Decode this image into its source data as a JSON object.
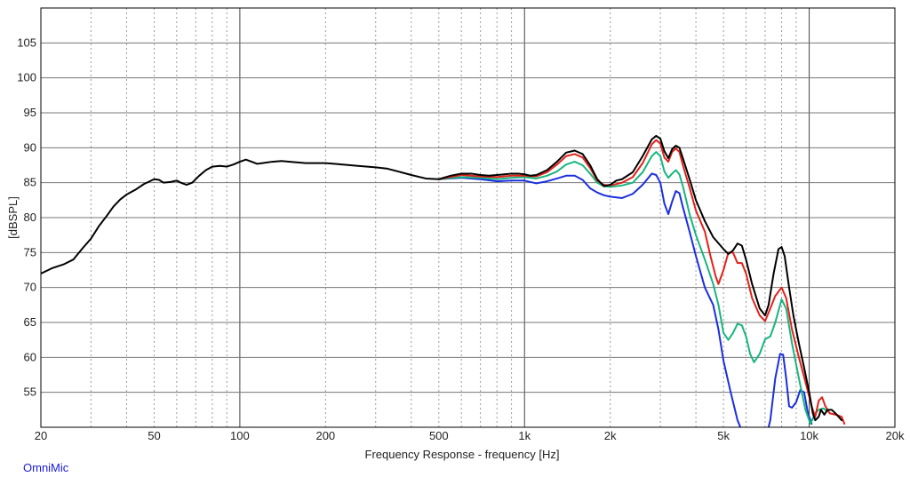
{
  "chart_data": {
    "type": "line",
    "title": "",
    "xlabel": "Frequency Response - frequency [Hz]",
    "ylabel": "[dBSPL]",
    "x_scale": "log",
    "xlim": [
      20,
      20000
    ],
    "ylim": [
      50,
      110
    ],
    "x_ticks": [
      {
        "value": 20,
        "label": "20"
      },
      {
        "value": 50,
        "label": "50"
      },
      {
        "value": 100,
        "label": "100"
      },
      {
        "value": 200,
        "label": "200"
      },
      {
        "value": 500,
        "label": "500"
      },
      {
        "value": 1000,
        "label": "1k"
      },
      {
        "value": 2000,
        "label": "2k"
      },
      {
        "value": 5000,
        "label": "5k"
      },
      {
        "value": 10000,
        "label": "10k"
      },
      {
        "value": 20000,
        "label": "20k"
      }
    ],
    "y_ticks": [
      55,
      60,
      65,
      70,
      75,
      80,
      85,
      90,
      95,
      100,
      105
    ],
    "grid": true,
    "legend": "none",
    "series": [
      {
        "color": "#000000",
        "points": [
          [
            20,
            72
          ],
          [
            22,
            72.8
          ],
          [
            24,
            73.3
          ],
          [
            26,
            74
          ],
          [
            28,
            75.6
          ],
          [
            30,
            77
          ],
          [
            32,
            78.8
          ],
          [
            34,
            80.2
          ],
          [
            36,
            81.6
          ],
          [
            38,
            82.6
          ],
          [
            40,
            83.3
          ],
          [
            43,
            84
          ],
          [
            46,
            84.8
          ],
          [
            50,
            85.5
          ],
          [
            52,
            85.4
          ],
          [
            54,
            85
          ],
          [
            57,
            85.1
          ],
          [
            60,
            85.3
          ],
          [
            62,
            85
          ],
          [
            65,
            84.7
          ],
          [
            68,
            85
          ],
          [
            72,
            86
          ],
          [
            76,
            86.8
          ],
          [
            80,
            87.3
          ],
          [
            85,
            87.4
          ],
          [
            90,
            87.3
          ],
          [
            95,
            87.6
          ],
          [
            100,
            88
          ],
          [
            105,
            88.3
          ],
          [
            110,
            88
          ],
          [
            115,
            87.7
          ],
          [
            120,
            87.8
          ],
          [
            130,
            88
          ],
          [
            140,
            88.1
          ],
          [
            150,
            88
          ],
          [
            160,
            87.9
          ],
          [
            170,
            87.8
          ],
          [
            180,
            87.8
          ],
          [
            200,
            87.8
          ],
          [
            230,
            87.6
          ],
          [
            260,
            87.4
          ],
          [
            300,
            87.2
          ],
          [
            330,
            87
          ],
          [
            360,
            86.6
          ],
          [
            400,
            86.1
          ],
          [
            450,
            85.6
          ],
          [
            500,
            85.5
          ],
          [
            550,
            86
          ],
          [
            600,
            86.3
          ],
          [
            650,
            86.3
          ],
          [
            700,
            86.1
          ],
          [
            750,
            86
          ],
          [
            800,
            86.1
          ],
          [
            850,
            86.2
          ],
          [
            900,
            86.3
          ],
          [
            950,
            86.3
          ],
          [
            1000,
            86.2
          ],
          [
            1050,
            86
          ],
          [
            1100,
            86.1
          ],
          [
            1200,
            86.8
          ],
          [
            1300,
            88
          ],
          [
            1400,
            89.3
          ],
          [
            1500,
            89.6
          ],
          [
            1600,
            89.1
          ],
          [
            1700,
            87.5
          ],
          [
            1800,
            85.5
          ],
          [
            1900,
            84.5
          ],
          [
            2000,
            84.7
          ],
          [
            2100,
            85.3
          ],
          [
            2200,
            85.5
          ],
          [
            2400,
            86.5
          ],
          [
            2600,
            88.8
          ],
          [
            2800,
            91.2
          ],
          [
            2900,
            91.7
          ],
          [
            3000,
            91.3
          ],
          [
            3100,
            89.5
          ],
          [
            3200,
            88.5
          ],
          [
            3300,
            89.8
          ],
          [
            3400,
            90.3
          ],
          [
            3500,
            90
          ],
          [
            3600,
            88.5
          ],
          [
            3800,
            85.5
          ],
          [
            4000,
            82.5
          ],
          [
            4300,
            79.5
          ],
          [
            4600,
            77.2
          ],
          [
            5000,
            75.5
          ],
          [
            5200,
            74.8
          ],
          [
            5400,
            75.3
          ],
          [
            5600,
            76.3
          ],
          [
            5800,
            76
          ],
          [
            6000,
            74
          ],
          [
            6300,
            70.5
          ],
          [
            6700,
            67
          ],
          [
            7000,
            66
          ],
          [
            7200,
            67.5
          ],
          [
            7500,
            72
          ],
          [
            7800,
            75.5
          ],
          [
            8000,
            75.8
          ],
          [
            8200,
            74.5
          ],
          [
            8500,
            70
          ],
          [
            8800,
            66
          ],
          [
            9200,
            62
          ],
          [
            9600,
            58.5
          ],
          [
            10000,
            55
          ],
          [
            10300,
            52
          ],
          [
            10500,
            51
          ],
          [
            10800,
            51.5
          ],
          [
            11000,
            52.5
          ],
          [
            11300,
            51.8
          ],
          [
            11600,
            52.5
          ],
          [
            12000,
            52.5
          ],
          [
            12500,
            51.8
          ],
          [
            13000,
            51
          ]
        ]
      },
      {
        "color": "#e0221a",
        "points": [
          [
            500,
            85.5
          ],
          [
            600,
            86.1
          ],
          [
            700,
            85.9
          ],
          [
            800,
            85.8
          ],
          [
            900,
            86
          ],
          [
            1000,
            86
          ],
          [
            1100,
            85.9
          ],
          [
            1200,
            86.5
          ],
          [
            1300,
            87.6
          ],
          [
            1400,
            88.8
          ],
          [
            1500,
            89.1
          ],
          [
            1600,
            88.6
          ],
          [
            1700,
            87.1
          ],
          [
            1800,
            85.3
          ],
          [
            1900,
            84.7
          ],
          [
            2000,
            84.6
          ],
          [
            2200,
            85
          ],
          [
            2400,
            85.8
          ],
          [
            2600,
            87.8
          ],
          [
            2800,
            90.5
          ],
          [
            2900,
            91.1
          ],
          [
            3000,
            90.6
          ],
          [
            3100,
            88.6
          ],
          [
            3200,
            88
          ],
          [
            3300,
            89.4
          ],
          [
            3400,
            89.9
          ],
          [
            3500,
            89.4
          ],
          [
            3600,
            87.5
          ],
          [
            3800,
            84.3
          ],
          [
            4000,
            81
          ],
          [
            4300,
            78
          ],
          [
            4500,
            74.5
          ],
          [
            4700,
            71.5
          ],
          [
            4800,
            70.5
          ],
          [
            5000,
            72.5
          ],
          [
            5200,
            75
          ],
          [
            5400,
            75
          ],
          [
            5600,
            73.5
          ],
          [
            5800,
            73.5
          ],
          [
            6000,
            72
          ],
          [
            6300,
            68.5
          ],
          [
            6700,
            66
          ],
          [
            7000,
            65.2
          ],
          [
            7300,
            67
          ],
          [
            7600,
            68.8
          ],
          [
            8000,
            70
          ],
          [
            8300,
            68.5
          ],
          [
            8700,
            64
          ],
          [
            9200,
            60
          ],
          [
            9700,
            56.5
          ],
          [
            10200,
            53
          ],
          [
            10500,
            51.5
          ],
          [
            10800,
            53.8
          ],
          [
            11100,
            54.3
          ],
          [
            11400,
            53
          ],
          [
            11800,
            52
          ],
          [
            12400,
            51.8
          ],
          [
            13000,
            51.5
          ],
          [
            13300,
            50.5
          ]
        ]
      },
      {
        "color": "#17b57f",
        "points": [
          [
            500,
            85.5
          ],
          [
            600,
            85.8
          ],
          [
            700,
            85.7
          ],
          [
            800,
            85.5
          ],
          [
            900,
            85.7
          ],
          [
            1000,
            85.8
          ],
          [
            1100,
            85.6
          ],
          [
            1200,
            86
          ],
          [
            1300,
            86.6
          ],
          [
            1400,
            87.6
          ],
          [
            1500,
            88
          ],
          [
            1600,
            87.5
          ],
          [
            1700,
            86.3
          ],
          [
            1800,
            85
          ],
          [
            1900,
            84.5
          ],
          [
            2000,
            84.4
          ],
          [
            2200,
            84.6
          ],
          [
            2400,
            85
          ],
          [
            2600,
            86.5
          ],
          [
            2800,
            88.8
          ],
          [
            2900,
            89.4
          ],
          [
            3000,
            88.8
          ],
          [
            3100,
            86.6
          ],
          [
            3200,
            85.7
          ],
          [
            3300,
            86.3
          ],
          [
            3400,
            86.8
          ],
          [
            3500,
            86.2
          ],
          [
            3600,
            84.5
          ],
          [
            3800,
            80.5
          ],
          [
            4000,
            77.5
          ],
          [
            4300,
            74
          ],
          [
            4600,
            70.5
          ],
          [
            4800,
            67.5
          ],
          [
            5000,
            63.5
          ],
          [
            5200,
            62.5
          ],
          [
            5400,
            63.5
          ],
          [
            5600,
            64.8
          ],
          [
            5800,
            64.6
          ],
          [
            6000,
            63
          ],
          [
            6200,
            60.5
          ],
          [
            6400,
            59.3
          ],
          [
            6700,
            60.5
          ],
          [
            7000,
            62.6
          ],
          [
            7300,
            63
          ],
          [
            7600,
            65
          ],
          [
            8000,
            68.3
          ],
          [
            8300,
            67
          ],
          [
            8700,
            62
          ],
          [
            9200,
            57
          ],
          [
            9700,
            52.5
          ],
          [
            10100,
            50.5
          ],
          [
            10500,
            52
          ],
          [
            10800,
            52.5
          ],
          [
            11200,
            52.7
          ],
          [
            11700,
            52.2
          ]
        ]
      },
      {
        "color": "#1a2ee0",
        "points": [
          [
            500,
            85.5
          ],
          [
            600,
            85.7
          ],
          [
            700,
            85.5
          ],
          [
            800,
            85.2
          ],
          [
            900,
            85.3
          ],
          [
            1000,
            85.3
          ],
          [
            1100,
            84.9
          ],
          [
            1200,
            85.2
          ],
          [
            1300,
            85.6
          ],
          [
            1400,
            86
          ],
          [
            1500,
            86
          ],
          [
            1600,
            85.4
          ],
          [
            1700,
            84.2
          ],
          [
            1800,
            83.6
          ],
          [
            1900,
            83.2
          ],
          [
            2000,
            83
          ],
          [
            2200,
            82.8
          ],
          [
            2400,
            83.4
          ],
          [
            2600,
            84.7
          ],
          [
            2800,
            86.3
          ],
          [
            2900,
            86.1
          ],
          [
            3000,
            85
          ],
          [
            3100,
            82
          ],
          [
            3200,
            80.5
          ],
          [
            3300,
            82.3
          ],
          [
            3400,
            83.8
          ],
          [
            3500,
            83.5
          ],
          [
            3600,
            81.5
          ],
          [
            3800,
            78
          ],
          [
            4000,
            74.5
          ],
          [
            4300,
            70
          ],
          [
            4600,
            67.5
          ],
          [
            4800,
            64
          ],
          [
            5000,
            59.5
          ],
          [
            5300,
            55
          ],
          [
            5600,
            51
          ],
          [
            5800,
            49.5
          ]
        ]
      },
      {
        "color": "#1a2ee0",
        "points": [
          [
            7000,
            48
          ],
          [
            7300,
            51
          ],
          [
            7600,
            57
          ],
          [
            7900,
            60.5
          ],
          [
            8100,
            60.4
          ],
          [
            8300,
            57
          ],
          [
            8500,
            53
          ],
          [
            8700,
            52.8
          ],
          [
            9000,
            53.6
          ],
          [
            9300,
            55.3
          ],
          [
            9600,
            55
          ],
          [
            9900,
            52
          ],
          [
            10200,
            50.5
          ]
        ]
      }
    ]
  },
  "footer": {
    "brand": "OmniMic"
  }
}
